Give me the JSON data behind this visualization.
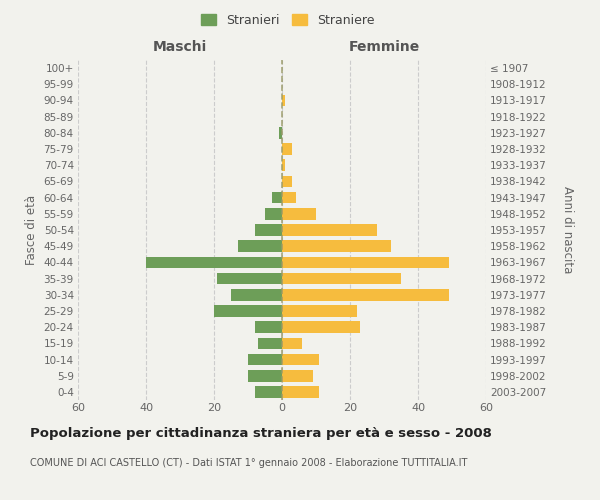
{
  "age_groups": [
    "100+",
    "95-99",
    "90-94",
    "85-89",
    "80-84",
    "75-79",
    "70-74",
    "65-69",
    "60-64",
    "55-59",
    "50-54",
    "45-49",
    "40-44",
    "35-39",
    "30-34",
    "25-29",
    "20-24",
    "15-19",
    "10-14",
    "5-9",
    "0-4"
  ],
  "birth_years": [
    "≤ 1907",
    "1908-1912",
    "1913-1917",
    "1918-1922",
    "1923-1927",
    "1928-1932",
    "1933-1937",
    "1938-1942",
    "1943-1947",
    "1948-1952",
    "1953-1957",
    "1958-1962",
    "1963-1967",
    "1968-1972",
    "1973-1977",
    "1978-1982",
    "1983-1987",
    "1988-1992",
    "1993-1997",
    "1998-2002",
    "2003-2007"
  ],
  "maschi": [
    0,
    0,
    0,
    0,
    1,
    0,
    0,
    0,
    3,
    5,
    8,
    13,
    40,
    19,
    15,
    20,
    8,
    7,
    10,
    10,
    8
  ],
  "femmine": [
    0,
    0,
    1,
    0,
    0,
    3,
    1,
    3,
    4,
    10,
    28,
    32,
    49,
    35,
    49,
    22,
    23,
    6,
    11,
    9,
    11
  ],
  "maschi_color": "#6d9e58",
  "femmine_color": "#f6bc3e",
  "background_color": "#f2f2ed",
  "grid_color": "#cccccc",
  "title": "Popolazione per cittadinanza straniera per età e sesso - 2008",
  "subtitle": "COMUNE DI ACI CASTELLO (CT) - Dati ISTAT 1° gennaio 2008 - Elaborazione TUTTITALIA.IT",
  "xlabel_left": "Maschi",
  "xlabel_right": "Femmine",
  "ylabel_left": "Fasce di età",
  "ylabel_right": "Anni di nascita",
  "xlim": 60,
  "legend_stranieri": "Stranieri",
  "legend_straniere": "Straniere"
}
